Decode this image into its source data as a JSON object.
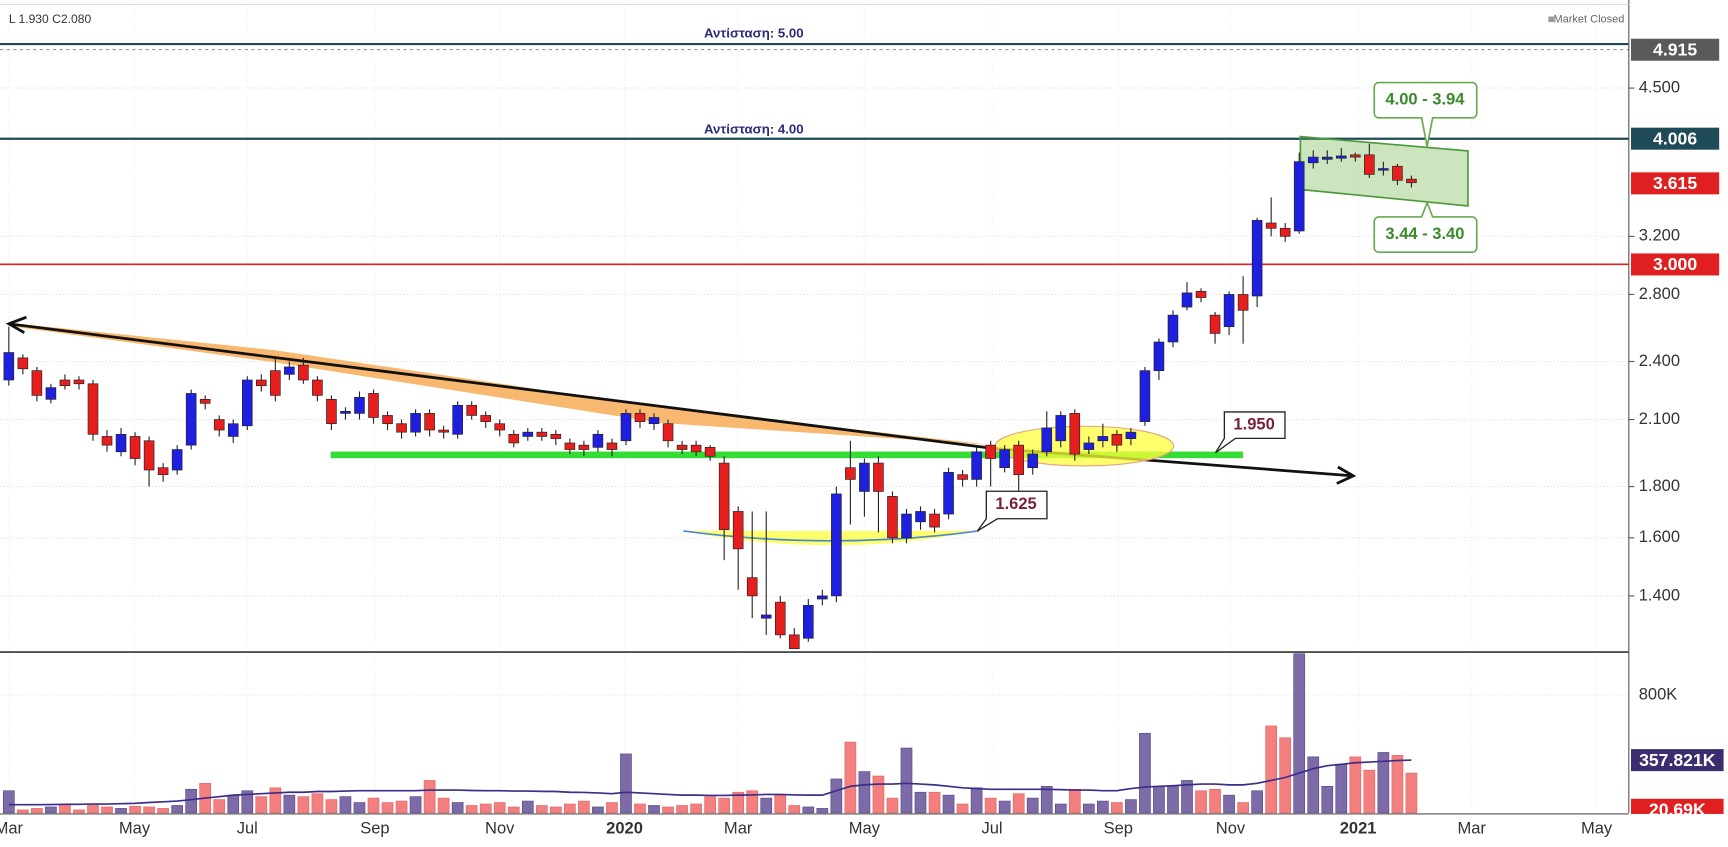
{
  "chart_data": {
    "type": "candlestick",
    "status_ohlc": "L 1.930 C2.080",
    "status": "Market Closed",
    "log_scale": true,
    "grid": true,
    "up_color": "#1f1fe0",
    "down_color": "#e61e1e",
    "volume_up_color": "#7d6ba8",
    "volume_down_color": "#f47f7f",
    "volume_ma_color": "#3b2d8a",
    "xlim": [
      -0.63,
      115.5
    ],
    "xticks": [
      {
        "value": 0,
        "label": "Mar"
      },
      {
        "value": 8.96,
        "label": "May"
      },
      {
        "value": 17,
        "label": "Jul"
      },
      {
        "value": 26.1,
        "label": "Sep"
      },
      {
        "value": 35,
        "label": "Nov"
      },
      {
        "value": 43.9,
        "label": "2020"
      },
      {
        "value": 52,
        "label": "Mar"
      },
      {
        "value": 61,
        "label": "May"
      },
      {
        "value": 70.1,
        "label": "Jul"
      },
      {
        "value": 79.1,
        "label": "Sep"
      },
      {
        "value": 87.1,
        "label": "Nov"
      },
      {
        "value": 96.2,
        "label": "2021"
      },
      {
        "value": 104.3,
        "label": "Mar"
      },
      {
        "value": 113.2,
        "label": "May"
      }
    ],
    "ylim": [
      1.262,
      5.455
    ],
    "yticks": [
      {
        "value": 1.4,
        "label": "1.400"
      },
      {
        "value": 1.6,
        "label": "1.600"
      },
      {
        "value": 1.8,
        "label": "1.800"
      },
      {
        "value": 2.1,
        "label": "2.100"
      },
      {
        "value": 2.4,
        "label": "2.400"
      },
      {
        "value": 2.8,
        "label": "2.800"
      },
      {
        "value": 3.2,
        "label": "3.200"
      },
      {
        "value": 4.5,
        "label": "4.500"
      }
    ],
    "price_labels": [
      {
        "value": 4.915,
        "label": "4.915",
        "color": "#5a5a5a"
      },
      {
        "value": 4.006,
        "label": "4.006",
        "color": "#1f4a57"
      },
      {
        "value": 3.615,
        "label": "3.615",
        "color": "#e02020"
      },
      {
        "value": 3.0,
        "label": "3.000",
        "color": "#e02020"
      }
    ],
    "vlim": [
      0,
      1084000
    ],
    "vticks": [
      {
        "value": 800000,
        "label": "800K"
      }
    ],
    "volume_labels": [
      {
        "value": 357821,
        "label": "357.821K",
        "color": "#3b2d6e"
      },
      {
        "value": 20690,
        "label": "20.69K",
        "color": "#e02020"
      }
    ],
    "open": [
      2.3,
      2.42,
      2.35,
      2.2,
      2.3,
      2.3,
      2.28,
      2.02,
      1.95,
      2.02,
      2.0,
      1.88,
      1.87,
      1.98,
      2.2,
      2.1,
      2.02,
      2.07,
      2.3,
      2.35,
      2.33,
      2.38,
      2.3,
      2.2,
      2.13,
      2.13,
      2.23,
      2.12,
      2.08,
      2.04,
      2.13,
      2.05,
      2.03,
      2.17,
      2.12,
      2.08,
      2.03,
      2.02,
      2.04,
      2.03,
      1.99,
      1.98,
      1.97,
      1.99,
      2.0,
      2.13,
      2.08,
      2.08,
      1.98,
      1.98,
      1.97,
      1.9,
      1.7,
      1.46,
      1.33,
      1.38,
      1.28,
      1.27,
      1.39,
      1.4,
      1.88,
      1.78,
      1.9,
      1.76,
      1.6,
      1.66,
      1.69,
      1.69,
      1.85,
      1.83,
      1.98,
      1.88,
      1.98,
      1.88,
      1.95,
      2.0,
      2.13,
      1.96,
      2.0,
      2.03,
      2.01,
      2.09,
      2.35,
      2.51,
      2.72,
      2.82,
      2.67,
      2.6,
      2.8,
      2.79,
      3.3,
      3.26,
      3.24,
      3.79,
      3.82,
      3.83,
      3.86,
      3.86,
      3.73,
      3.76,
      3.65
    ],
    "high": [
      2.6,
      2.44,
      2.37,
      2.28,
      2.33,
      2.32,
      2.3,
      2.05,
      2.06,
      2.04,
      2.02,
      1.9,
      1.98,
      2.25,
      2.22,
      2.12,
      2.1,
      2.32,
      2.33,
      2.42,
      2.4,
      2.42,
      2.32,
      2.22,
      2.16,
      2.24,
      2.25,
      2.14,
      2.1,
      2.15,
      2.15,
      2.07,
      2.19,
      2.19,
      2.14,
      2.1,
      2.05,
      2.06,
      2.06,
      2.05,
      2.01,
      2.0,
      2.05,
      2.01,
      2.15,
      2.15,
      2.13,
      2.1,
      2.0,
      2.0,
      1.98,
      1.93,
      1.72,
      1.7,
      1.7,
      1.4,
      1.3,
      1.39,
      1.42,
      1.8,
      2.0,
      1.92,
      1.93,
      1.78,
      1.71,
      1.72,
      1.71,
      1.88,
      1.87,
      1.97,
      2.0,
      1.98,
      2.0,
      1.96,
      2.14,
      2.14,
      2.15,
      2.02,
      2.08,
      2.05,
      2.06,
      2.37,
      2.53,
      2.7,
      2.88,
      2.84,
      2.69,
      2.82,
      2.92,
      3.34,
      3.5,
      3.3,
      3.88,
      3.9,
      3.9,
      3.92,
      3.88,
      3.96,
      3.8,
      3.78,
      3.68
    ],
    "low": [
      2.27,
      2.33,
      2.19,
      2.18,
      2.25,
      2.25,
      2.0,
      1.95,
      1.93,
      1.89,
      1.8,
      1.82,
      1.85,
      1.96,
      2.15,
      2.02,
      1.99,
      2.05,
      2.24,
      2.19,
      2.3,
      2.28,
      2.19,
      2.05,
      2.1,
      2.1,
      2.08,
      2.05,
      2.01,
      2.02,
      2.02,
      2.01,
      2.01,
      2.1,
      2.06,
      2.02,
      1.97,
      2.0,
      2.0,
      1.98,
      1.94,
      1.93,
      1.95,
      1.93,
      1.98,
      2.06,
      2.05,
      1.97,
      1.94,
      1.93,
      1.91,
      1.52,
      1.42,
      1.33,
      1.28,
      1.27,
      1.25,
      1.26,
      1.37,
      1.38,
      1.65,
      1.68,
      1.62,
      1.58,
      1.58,
      1.63,
      1.62,
      1.67,
      1.8,
      1.8,
      1.8,
      1.86,
      1.78,
      1.85,
      1.93,
      1.97,
      1.91,
      1.94,
      1.97,
      1.95,
      1.98,
      2.07,
      2.3,
      2.48,
      2.7,
      2.75,
      2.5,
      2.55,
      2.5,
      2.72,
      3.2,
      3.16,
      3.22,
      3.74,
      3.78,
      3.8,
      3.8,
      3.66,
      3.68,
      3.6,
      3.58
    ],
    "close": [
      2.45,
      2.36,
      2.22,
      2.26,
      2.27,
      2.28,
      2.03,
      1.98,
      2.03,
      1.92,
      1.87,
      1.85,
      1.96,
      2.23,
      2.18,
      2.05,
      2.08,
      2.3,
      2.27,
      2.22,
      2.37,
      2.3,
      2.22,
      2.08,
      2.14,
      2.21,
      2.11,
      2.08,
      2.04,
      2.13,
      2.05,
      2.04,
      2.17,
      2.12,
      2.09,
      2.05,
      1.99,
      2.04,
      2.02,
      2.01,
      1.96,
      1.96,
      2.03,
      1.96,
      2.13,
      2.09,
      2.11,
      2.0,
      1.96,
      1.95,
      1.93,
      1.63,
      1.56,
      1.4,
      1.34,
      1.28,
      1.24,
      1.37,
      1.4,
      1.77,
      1.83,
      1.9,
      1.78,
      1.6,
      1.69,
      1.7,
      1.64,
      1.86,
      1.83,
      1.95,
      1.92,
      1.96,
      1.85,
      1.94,
      2.06,
      2.12,
      1.94,
      1.99,
      2.02,
      1.98,
      2.04,
      2.35,
      2.51,
      2.67,
      2.81,
      2.78,
      2.56,
      2.8,
      2.7,
      3.32,
      3.26,
      3.2,
      3.8,
      3.84,
      3.84,
      3.85,
      3.84,
      3.69,
      3.74,
      3.64,
      3.62
    ],
    "volume": [
      150000,
      20000,
      30000,
      40000,
      60000,
      20000,
      50000,
      40000,
      30000,
      45000,
      40000,
      30000,
      50000,
      160000,
      200000,
      90000,
      120000,
      150000,
      110000,
      170000,
      120000,
      110000,
      130000,
      90000,
      110000,
      70000,
      100000,
      70000,
      80000,
      110000,
      220000,
      100000,
      70000,
      50000,
      60000,
      70000,
      40000,
      80000,
      50000,
      40000,
      60000,
      80000,
      40000,
      70000,
      400000,
      60000,
      50000,
      40000,
      50000,
      60000,
      110000,
      100000,
      140000,
      150000,
      100000,
      120000,
      50000,
      40000,
      30000,
      230000,
      480000,
      280000,
      250000,
      100000,
      440000,
      140000,
      140000,
      120000,
      60000,
      170000,
      100000,
      80000,
      130000,
      100000,
      180000,
      60000,
      160000,
      60000,
      80000,
      70000,
      90000,
      540000,
      180000,
      180000,
      220000,
      150000,
      160000,
      120000,
      70000,
      150000,
      590000,
      510000,
      1080000,
      380000,
      180000,
      330000,
      380000,
      290000,
      410000,
      390000,
      270000
    ],
    "volume_ma": [
      55000,
      55000,
      55000,
      56000,
      58000,
      58000,
      60000,
      60000,
      62000,
      65000,
      70000,
      75000,
      80000,
      90000,
      100000,
      110000,
      120000,
      125000,
      130000,
      135000,
      140000,
      140000,
      145000,
      145000,
      148000,
      150000,
      150000,
      150000,
      150000,
      150000,
      155000,
      155000,
      155000,
      152000,
      150000,
      150000,
      148000,
      148000,
      146000,
      145000,
      140000,
      138000,
      135000,
      130000,
      140000,
      135000,
      130000,
      125000,
      120000,
      120000,
      118000,
      118000,
      120000,
      122000,
      125000,
      125000,
      122000,
      120000,
      120000,
      150000,
      180000,
      190000,
      195000,
      195000,
      200000,
      195000,
      190000,
      180000,
      170000,
      165000,
      160000,
      160000,
      160000,
      160000,
      160000,
      158000,
      155000,
      155000,
      150000,
      150000,
      165000,
      175000,
      180000,
      185000,
      190000,
      195000,
      195000,
      190000,
      190000,
      200000,
      220000,
      240000,
      270000,
      300000,
      320000,
      330000,
      340000,
      345000,
      350000,
      355000,
      357821
    ],
    "annotations": {
      "resistance_high": "Αντίσταση: 5.00",
      "resistance_mid": "Αντίσταση: 4.00",
      "channel_top": "4.00 - 3.94",
      "channel_bottom": "3.44 - 3.40",
      "breakout": "1.950",
      "bottom": "1.625"
    }
  }
}
